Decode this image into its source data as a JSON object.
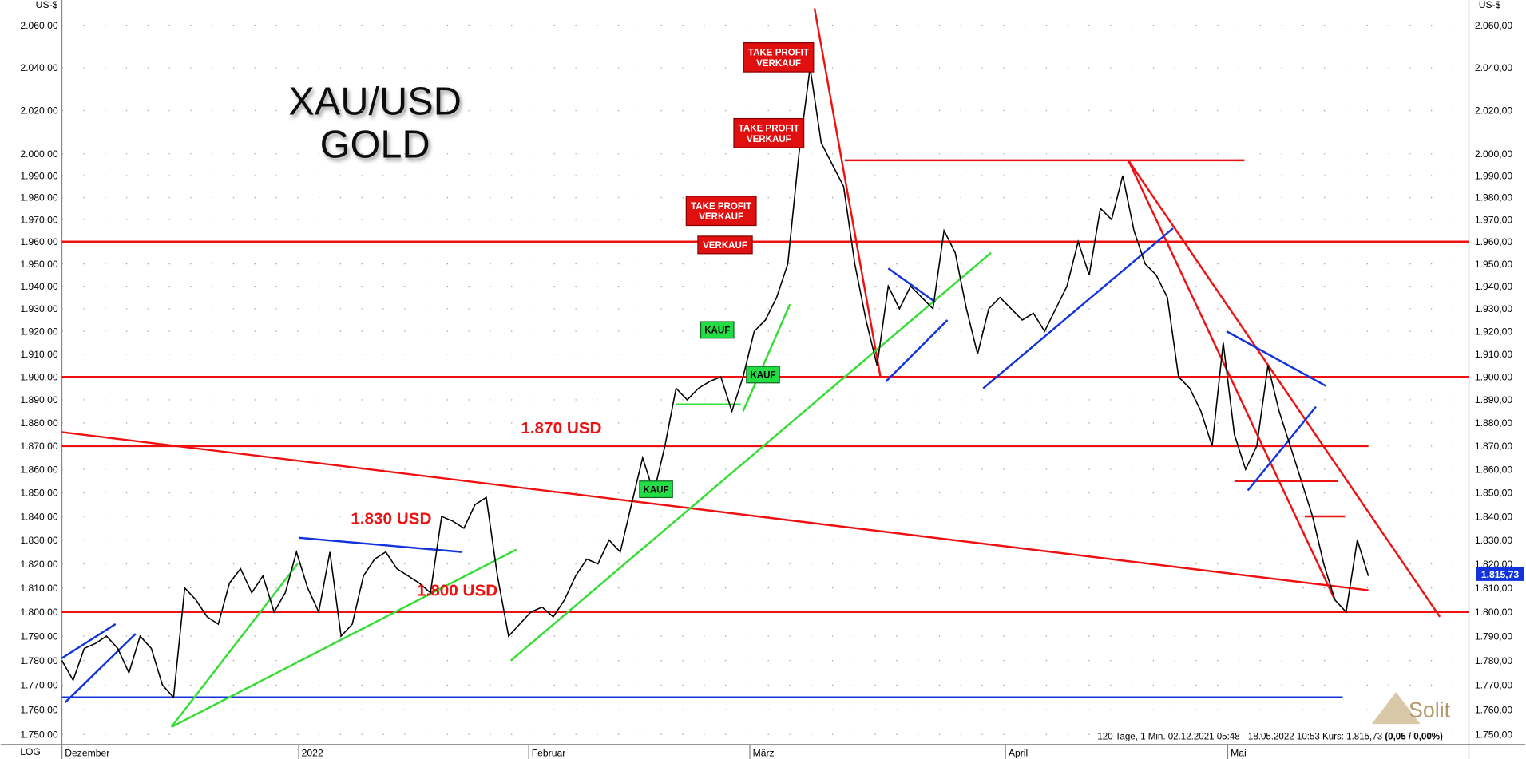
{
  "chart_data": {
    "type": "line",
    "log_scale": true,
    "grid": true,
    "title": [
      "XAU/USD",
      "GOLD"
    ],
    "y_unit": "US-$",
    "scale_label": "LOG",
    "footer": "120 Tage, 1 Min. 02.12.2021 05:48 - 18.05.2022 10:53 Kurs: 1.815,73 ",
    "footer_change": "(0,05 / 0,00%)",
    "logo": "Solit",
    "last_price": {
      "value": 1815.73,
      "label": "1.815,73"
    },
    "xlim": [
      0,
      126
    ],
    "xticks": [
      {
        "value": 0,
        "label": "Dezember"
      },
      {
        "value": 21.2,
        "label": "2022"
      },
      {
        "value": 41.8,
        "label": "Februar"
      },
      {
        "value": 61.6,
        "label": "März"
      },
      {
        "value": 84.5,
        "label": "April"
      },
      {
        "value": 104.4,
        "label": "Mai"
      }
    ],
    "ylim": [
      1746,
      2072
    ],
    "yticks": [
      {
        "value": 1750,
        "label": "1.750,00"
      },
      {
        "value": 1760,
        "label": "1.760,00"
      },
      {
        "value": 1770,
        "label": "1.770,00"
      },
      {
        "value": 1780,
        "label": "1.780,00"
      },
      {
        "value": 1790,
        "label": "1.790,00"
      },
      {
        "value": 1800,
        "label": "1.800,00"
      },
      {
        "value": 1810,
        "label": "1.810,00"
      },
      {
        "value": 1820,
        "label": "1.820,00"
      },
      {
        "value": 1830,
        "label": "1.830,00"
      },
      {
        "value": 1840,
        "label": "1.840,00"
      },
      {
        "value": 1850,
        "label": "1.850,00"
      },
      {
        "value": 1860,
        "label": "1.860,00"
      },
      {
        "value": 1870,
        "label": "1.870,00"
      },
      {
        "value": 1880,
        "label": "1.880,00"
      },
      {
        "value": 1890,
        "label": "1.890,00"
      },
      {
        "value": 1900,
        "label": "1.900,00"
      },
      {
        "value": 1910,
        "label": "1.910,00"
      },
      {
        "value": 1920,
        "label": "1.920,00"
      },
      {
        "value": 1930,
        "label": "1.930,00"
      },
      {
        "value": 1940,
        "label": "1.940,00"
      },
      {
        "value": 1950,
        "label": "1.950,00"
      },
      {
        "value": 1960,
        "label": "1.960,00"
      },
      {
        "value": 1970,
        "label": "1.970,00"
      },
      {
        "value": 1980,
        "label": "1.980,00"
      },
      {
        "value": 1990,
        "label": "1.990,00"
      },
      {
        "value": 2000,
        "label": "2.000,00"
      },
      {
        "value": 2020,
        "label": "2.020,00"
      },
      {
        "value": 2040,
        "label": "2.040,00"
      },
      {
        "value": 2060,
        "label": "2.060,00"
      }
    ],
    "series": [
      {
        "name": "XAU/USD",
        "color": "#000000",
        "values": [
          1780,
          1772,
          1785,
          1787,
          1790,
          1785,
          1775,
          1790,
          1785,
          1770,
          1765,
          1810,
          1805,
          1798,
          1795,
          1812,
          1818,
          1808,
          1815,
          1800,
          1808,
          1825,
          1810,
          1800,
          1825,
          1790,
          1795,
          1815,
          1822,
          1825,
          1818,
          1815,
          1812,
          1808,
          1840,
          1838,
          1835,
          1845,
          1848,
          1815,
          1790,
          1795,
          1800,
          1802,
          1798,
          1805,
          1815,
          1822,
          1820,
          1830,
          1825,
          1845,
          1865,
          1850,
          1870,
          1895,
          1890,
          1895,
          1898,
          1900,
          1885,
          1900,
          1920,
          1925,
          1935,
          1950,
          2000,
          2040,
          2005,
          1995,
          1985,
          1950,
          1925,
          1905,
          1940,
          1930,
          1940,
          1935,
          1930,
          1965,
          1955,
          1930,
          1910,
          1930,
          1935,
          1930,
          1925,
          1928,
          1920,
          1930,
          1940,
          1960,
          1945,
          1975,
          1970,
          1990,
          1965,
          1950,
          1945,
          1935,
          1900,
          1895,
          1885,
          1870,
          1915,
          1875,
          1860,
          1870,
          1905,
          1885,
          1870,
          1855,
          1840,
          1820,
          1805,
          1800,
          1830,
          1815
        ]
      }
    ],
    "levels": [
      {
        "value": 1960,
        "color": "#ee1111",
        "from": 0,
        "to": 126
      },
      {
        "value": 1900,
        "color": "#ee1111",
        "from": 0,
        "to": 126
      },
      {
        "value": 1870,
        "color": "#ee1111",
        "from": 0,
        "to": 117
      },
      {
        "value": 1800,
        "color": "#ee1111",
        "from": 0,
        "to": 126
      },
      {
        "value": 1765,
        "color": "#1133dd",
        "from": 0,
        "to": 114.7
      },
      {
        "value": 1997,
        "color": "#ee1111",
        "from": 70.1,
        "to": 105.9
      },
      {
        "value": 1855,
        "color": "#ee1111",
        "from": 105,
        "to": 114.3
      },
      {
        "value": 1840,
        "color": "#ee1111",
        "from": 111.3,
        "to": 114.9
      }
    ],
    "trendlines": [
      {
        "from": [
          0,
          1876
        ],
        "to": [
          117,
          1809
        ],
        "color": "#ee1111"
      },
      {
        "from": [
          67.4,
          2068
        ],
        "to": [
          73.3,
          1900
        ],
        "color": "#ee1111"
      },
      {
        "from": [
          95.5,
          1997
        ],
        "to": [
          123.4,
          1798
        ],
        "color": "#ee1111"
      },
      {
        "from": [
          95.5,
          1997
        ],
        "to": [
          114,
          1805
        ],
        "color": "#ee1111"
      },
      {
        "from": [
          40.2,
          1780
        ],
        "to": [
          83.2,
          1955
        ],
        "color": "#33dd33"
      },
      {
        "from": [
          9.8,
          1753
        ],
        "to": [
          40.7,
          1826
        ],
        "color": "#33dd33"
      },
      {
        "from": [
          9.8,
          1753
        ],
        "to": [
          21.1,
          1820
        ],
        "color": "#33dd33"
      },
      {
        "from": [
          55,
          1888
        ],
        "to": [
          60.8,
          1888
        ],
        "color": "#33dd33"
      },
      {
        "from": [
          61,
          1885
        ],
        "to": [
          65.2,
          1932
        ],
        "color": "#33dd33"
      },
      {
        "from": [
          21.2,
          1831
        ],
        "to": [
          35.8,
          1825
        ],
        "color": "#1133dd"
      },
      {
        "from": [
          0,
          1781
        ],
        "to": [
          4.8,
          1795
        ],
        "color": "#1133dd"
      },
      {
        "from": [
          0.3,
          1763
        ],
        "to": [
          6.6,
          1791
        ],
        "color": "#1133dd"
      },
      {
        "from": [
          82.5,
          1895
        ],
        "to": [
          99.5,
          1966
        ],
        "color": "#1133dd"
      },
      {
        "from": [
          104.3,
          1920
        ],
        "to": [
          113.2,
          1896
        ],
        "color": "#1133dd"
      },
      {
        "from": [
          106.2,
          1851
        ],
        "to": [
          112.3,
          1887
        ],
        "color": "#1133dd"
      },
      {
        "from": [
          74,
          1948
        ],
        "to": [
          78.2,
          1933
        ],
        "color": "#1133dd"
      },
      {
        "from": [
          73.8,
          1898
        ],
        "to": [
          79.3,
          1925
        ],
        "color": "#1133dd"
      }
    ],
    "annotations": [
      {
        "lines": [
          "TAKE PROFIT",
          "VERKAUF"
        ],
        "kind": "sell"
      },
      {
        "lines": [
          "TAKE PROFIT",
          "VERKAUF"
        ],
        "kind": "sell"
      },
      {
        "lines": [
          "TAKE PROFIT",
          "VERKAUF"
        ],
        "kind": "sell"
      },
      {
        "lines": [
          "VERKAUF"
        ],
        "kind": "sell"
      },
      {
        "lines": [
          "KAUF"
        ],
        "kind": "buy"
      },
      {
        "lines": [
          "KAUF"
        ],
        "kind": "buy"
      },
      {
        "lines": [
          "KAUF"
        ],
        "kind": "buy"
      },
      {
        "lines": [
          "1.870 USD"
        ],
        "kind": "level"
      },
      {
        "lines": [
          "1.830 USD"
        ],
        "kind": "level"
      },
      {
        "lines": [
          "1.800 USD"
        ],
        "kind": "level"
      }
    ]
  }
}
